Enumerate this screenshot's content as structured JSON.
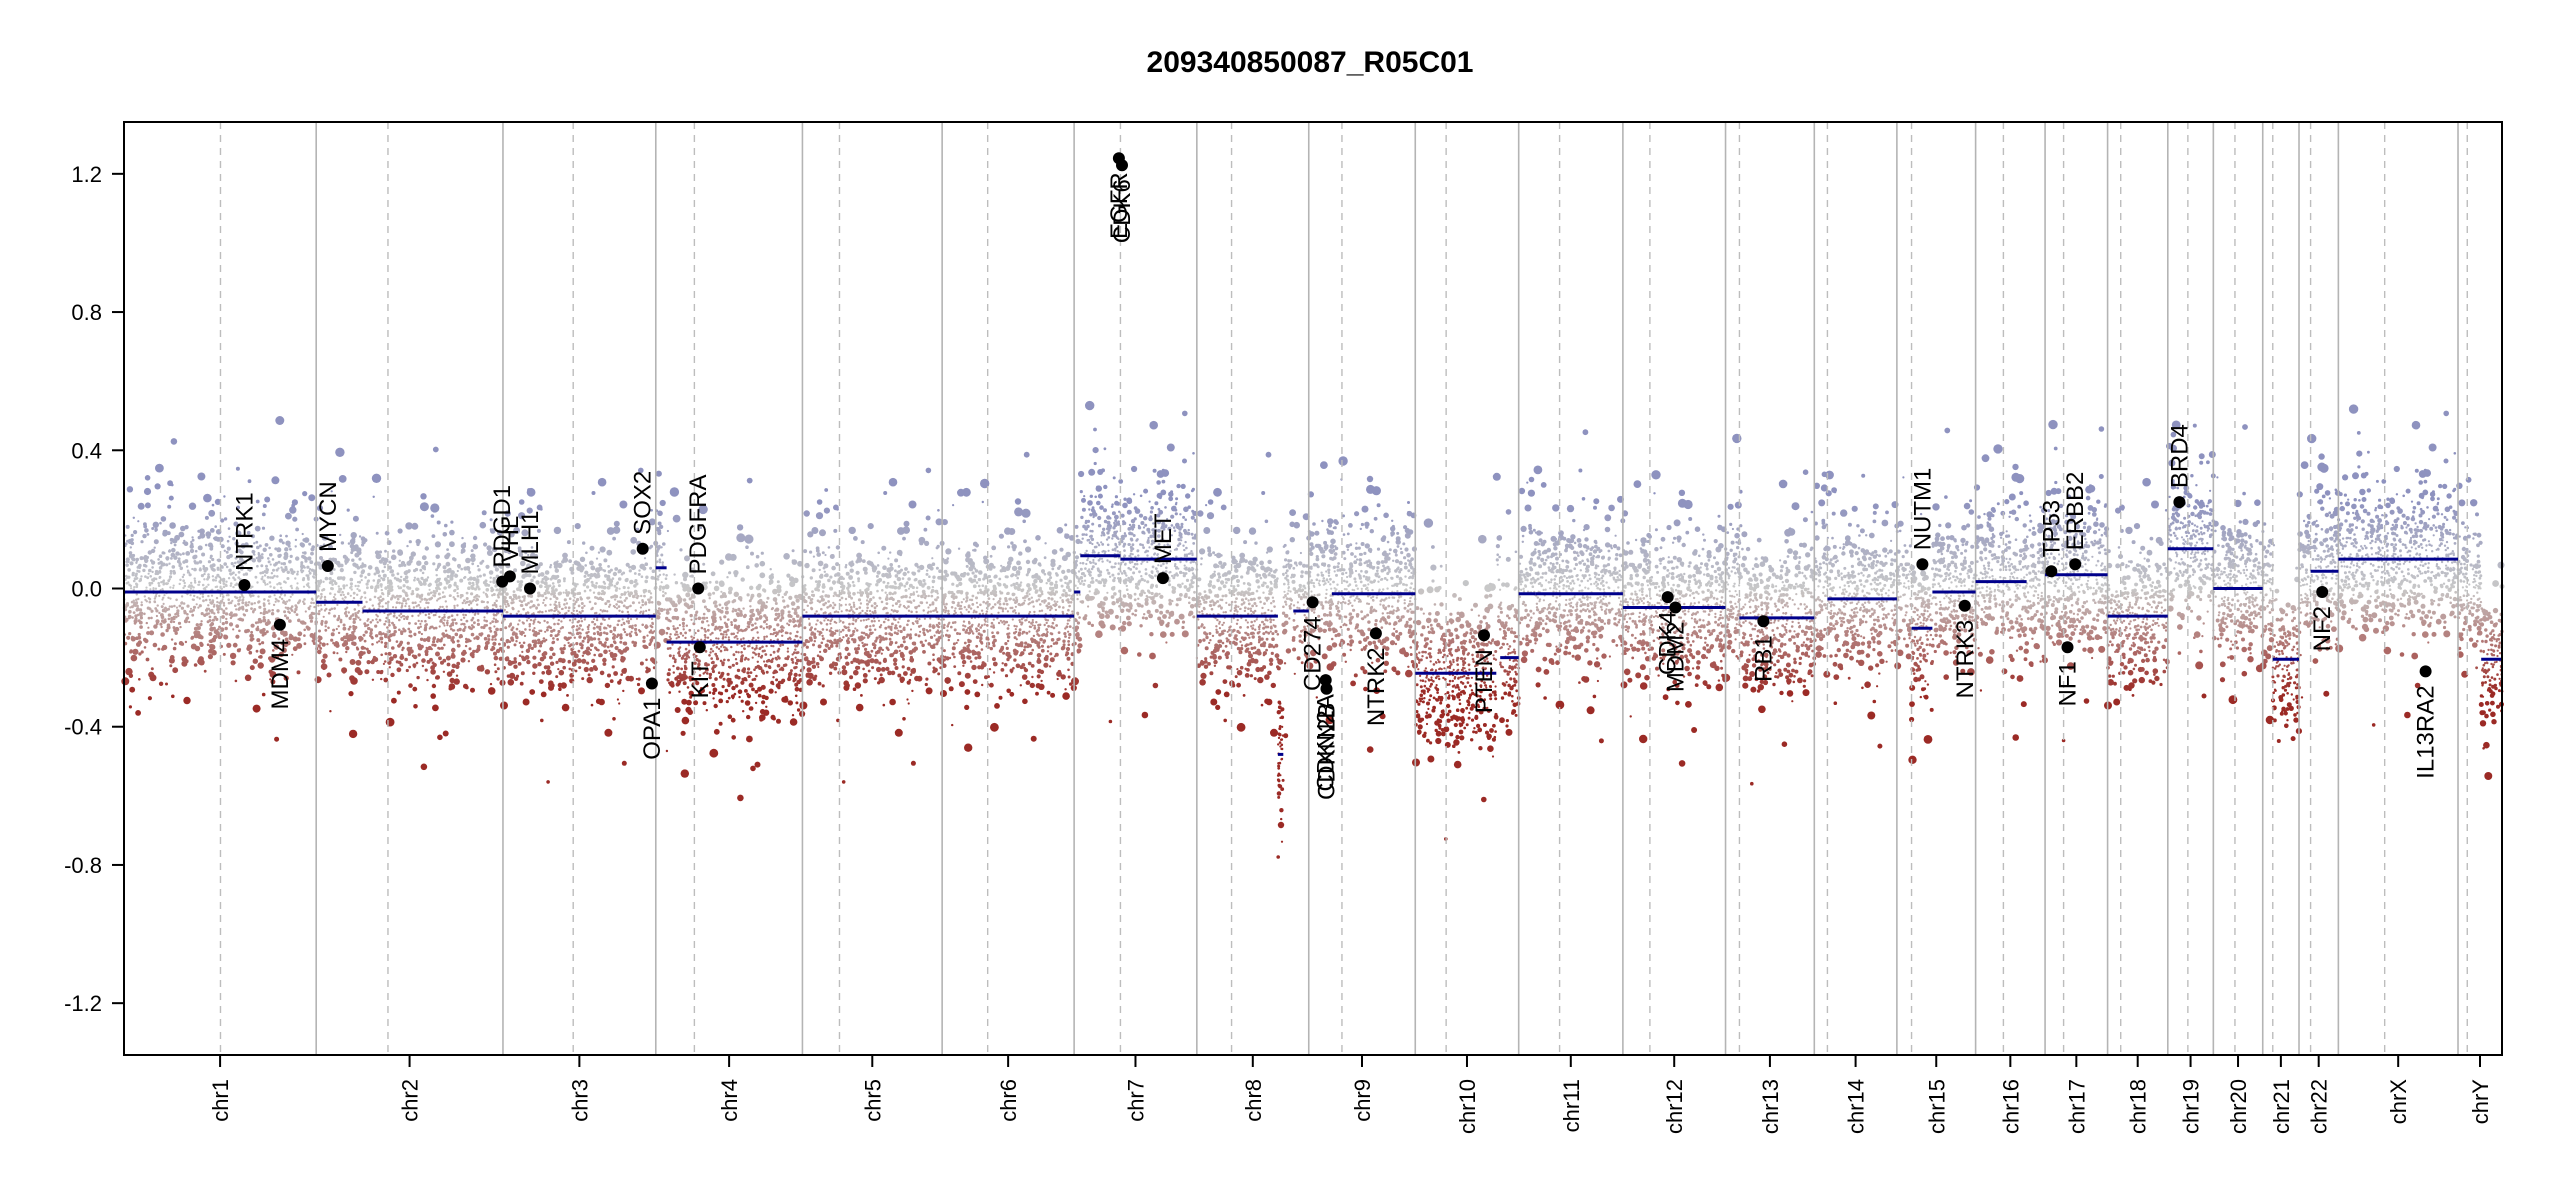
{
  "chart_data": {
    "type": "scatter",
    "title": "209340850087_R05C01",
    "xlabel": "",
    "ylabel": "",
    "ylim": [
      -1.35,
      1.35
    ],
    "yticks": [
      -1.2,
      -0.8,
      -0.4,
      0.0,
      0.4,
      0.8,
      1.2
    ],
    "ytick_labels": [
      "-1.2",
      "-0.8",
      "-0.4",
      "0.0",
      "0.4",
      "0.8",
      "1.2"
    ],
    "colors": {
      "high": "#8e92bf",
      "neutral": "#c8c8c8",
      "low": "#9b2a25",
      "segment": "#00008b",
      "gene_point": "#000000"
    },
    "chromosomes": [
      {
        "name": "chr1",
        "start": 0.0,
        "end": 249.0,
        "centromere": 125.0,
        "segments": [
          [
            0.0,
            249.0,
            -0.01
          ]
        ]
      },
      {
        "name": "chr2",
        "start": 249.0,
        "end": 491.0,
        "centromere": 93.0,
        "segments": [
          [
            0.0,
            60.0,
            -0.04
          ],
          [
            60.0,
            242.0,
            -0.065
          ]
        ]
      },
      {
        "name": "chr3",
        "start": 491.0,
        "end": 689.0,
        "centromere": 91.0,
        "segments": [
          [
            0.0,
            198.0,
            -0.08
          ]
        ]
      },
      {
        "name": "chr4",
        "start": 689.0,
        "end": 879.0,
        "centromere": 50.0,
        "segments": [
          [
            0.0,
            14.0,
            0.06
          ],
          [
            14.0,
            190.0,
            -0.155
          ]
        ]
      },
      {
        "name": "chr5",
        "start": 879.0,
        "end": 1060.0,
        "centromere": 48.0,
        "segments": [
          [
            0.0,
            181.0,
            -0.08
          ]
        ]
      },
      {
        "name": "chr6",
        "start": 1060.0,
        "end": 1231.0,
        "centromere": 59.0,
        "segments": [
          [
            0.0,
            171.0,
            -0.08
          ]
        ]
      },
      {
        "name": "chr7",
        "start": 1231.0,
        "end": 1390.0,
        "centromere": 60.0,
        "segments": [
          [
            0.0,
            8.0,
            -0.01
          ],
          [
            8.0,
            60.0,
            0.095
          ],
          [
            60.0,
            159.0,
            0.085
          ]
        ]
      },
      {
        "name": "chr8",
        "start": 1390.0,
        "end": 1535.0,
        "centromere": 45.0,
        "segments": [
          [
            0.0,
            105.0,
            -0.08
          ],
          [
            105.0,
            112.0,
            -0.48
          ],
          [
            125.0,
            145.0,
            -0.065
          ]
        ]
      },
      {
        "name": "chr9",
        "start": 1535.0,
        "end": 1673.0,
        "centromere": 43.0,
        "segments": [
          [
            30.0,
            138.0,
            -0.015
          ]
        ]
      },
      {
        "name": "chr10",
        "start": 1673.0,
        "end": 1807.0,
        "centromere": 40.0,
        "segments": [
          [
            0.0,
            105.0,
            -0.245
          ],
          [
            110.0,
            134.0,
            -0.2
          ]
        ]
      },
      {
        "name": "chr11",
        "start": 1807.0,
        "end": 1942.0,
        "centromere": 53.0,
        "segments": [
          [
            0.0,
            22.0,
            -0.015
          ],
          [
            22.0,
            135.0,
            -0.015
          ]
        ]
      },
      {
        "name": "chr12",
        "start": 1942.0,
        "end": 2075.0,
        "centromere": 35.0,
        "segments": [
          [
            0.0,
            133.0,
            -0.055
          ]
        ]
      },
      {
        "name": "chr13",
        "start": 2075.0,
        "end": 2190.0,
        "centromere": 18.0,
        "segments": [
          [
            18.0,
            115.0,
            -0.085
          ]
        ]
      },
      {
        "name": "chr14",
        "start": 2190.0,
        "end": 2297.0,
        "centromere": 17.0,
        "segments": [
          [
            17.0,
            107.0,
            -0.03
          ]
        ]
      },
      {
        "name": "chr15",
        "start": 2297.0,
        "end": 2399.0,
        "centromere": 19.0,
        "segments": [
          [
            19.0,
            46.0,
            -0.115
          ],
          [
            46.0,
            102.0,
            -0.01
          ]
        ]
      },
      {
        "name": "chr16",
        "start": 2399.0,
        "end": 2489.0,
        "centromere": 36.0,
        "segments": [
          [
            0.0,
            66.0,
            0.02
          ]
        ]
      },
      {
        "name": "chr17",
        "start": 2489.0,
        "end": 2570.0,
        "centromere": 24.0,
        "segments": [
          [
            0.0,
            81.0,
            0.04
          ]
        ]
      },
      {
        "name": "chr18",
        "start": 2570.0,
        "end": 2648.0,
        "centromere": 17.0,
        "segments": [
          [
            0.0,
            78.0,
            -0.08
          ]
        ]
      },
      {
        "name": "chr19",
        "start": 2648.0,
        "end": 2707.0,
        "centromere": 26.0,
        "segments": [
          [
            0.0,
            59.0,
            0.115
          ]
        ]
      },
      {
        "name": "chr20",
        "start": 2707.0,
        "end": 2771.0,
        "centromere": 28.0,
        "segments": [
          [
            0.0,
            64.0,
            0.0
          ]
        ]
      },
      {
        "name": "chr21",
        "start": 2771.0,
        "end": 2818.0,
        "centromere": 13.0,
        "segments": [
          [
            13.0,
            47.0,
            -0.205
          ]
        ]
      },
      {
        "name": "chr22",
        "start": 2818.0,
        "end": 2869.0,
        "centromere": 15.0,
        "segments": [
          [
            15.0,
            51.0,
            0.05
          ]
        ]
      },
      {
        "name": "chrX",
        "start": 2869.0,
        "end": 3024.0,
        "centromere": 60.0,
        "segments": [
          [
            0.0,
            155.0,
            0.085
          ]
        ]
      },
      {
        "name": "chrY",
        "start": 3024.0,
        "end": 3081.0,
        "centromere": 12.0,
        "segments": [
          [
            30.0,
            57.0,
            -0.205
          ]
        ]
      }
    ],
    "genes": [
      {
        "name": "NTRK1",
        "x": 156.0,
        "y": 0.01,
        "label_side": "above"
      },
      {
        "name": "MDM4",
        "x": 202.0,
        "y": -0.105,
        "label_side": "below"
      },
      {
        "name": "MYCN",
        "x": 264.0,
        "y": 0.065,
        "label_side": "above"
      },
      {
        "name": "PDGD1",
        "x": 490.0,
        "y": 0.02,
        "label_side": "above"
      },
      {
        "name": "VHL",
        "x": 500.0,
        "y": 0.035,
        "label_side": "above"
      },
      {
        "name": "MLH1",
        "x": 526.0,
        "y": 0.0,
        "label_side": "above"
      },
      {
        "name": "SOX2",
        "x": 672.0,
        "y": 0.115,
        "label_side": "above"
      },
      {
        "name": "OPA1",
        "x": 684.0,
        "y": -0.275,
        "label_side": "below"
      },
      {
        "name": "PDGFRA",
        "x": 744.0,
        "y": 0.0,
        "label_side": "above"
      },
      {
        "name": "KIT",
        "x": 746.0,
        "y": -0.17,
        "label_side": "below"
      },
      {
        "name": "EGFR",
        "x": 1289.0,
        "y": 1.245,
        "label_side": "below"
      },
      {
        "name": "CDK6",
        "x": 1293.0,
        "y": 1.225,
        "label_side": "below"
      },
      {
        "name": "MET",
        "x": 1346.0,
        "y": 0.03,
        "label_side": "above"
      },
      {
        "name": "CD274",
        "x": 1540.0,
        "y": -0.04,
        "label_side": "below"
      },
      {
        "name": "CDKN2A",
        "x": 1557.0,
        "y": -0.265,
        "label_side": "below"
      },
      {
        "name": "CDKN2B",
        "x": 1558.0,
        "y": -0.29,
        "label_side": "below"
      },
      {
        "name": "NTRK2",
        "x": 1622.0,
        "y": -0.13,
        "label_side": "below"
      },
      {
        "name": "PTEN",
        "x": 1762.0,
        "y": -0.135,
        "label_side": "below"
      },
      {
        "name": "CDK4",
        "x": 2000.0,
        "y": -0.025,
        "label_side": "below"
      },
      {
        "name": "MDM2",
        "x": 2010.0,
        "y": -0.055,
        "label_side": "below"
      },
      {
        "name": "RB1",
        "x": 2124.0,
        "y": -0.095,
        "label_side": "below"
      },
      {
        "name": "NUTM1",
        "x": 2330.0,
        "y": 0.07,
        "label_side": "above"
      },
      {
        "name": "NTRK3",
        "x": 2385.0,
        "y": -0.05,
        "label_side": "below"
      },
      {
        "name": "TP53",
        "x": 2497.0,
        "y": 0.05,
        "label_side": "above"
      },
      {
        "name": "ERBB2",
        "x": 2528.0,
        "y": 0.07,
        "label_side": "above"
      },
      {
        "name": "NF1",
        "x": 2518.0,
        "y": -0.17,
        "label_side": "below"
      },
      {
        "name": "BRD4",
        "x": 2663.0,
        "y": 0.25,
        "label_side": "above"
      },
      {
        "name": "NF2",
        "x": 2848.0,
        "y": -0.01,
        "label_side": "below"
      },
      {
        "name": "IL13RA2",
        "x": 2982.0,
        "y": -0.24,
        "label_side": "below"
      }
    ]
  }
}
